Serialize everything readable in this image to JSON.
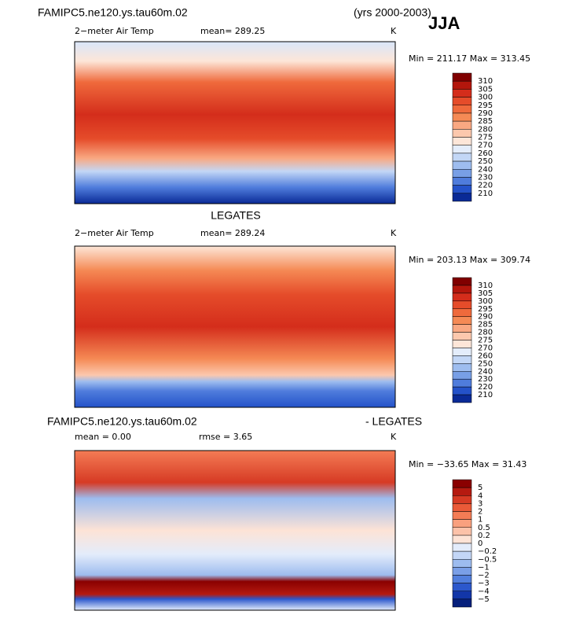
{
  "header": {
    "case": "FAMIPC5.ne120.ys.tau60m.02",
    "years": "(yrs 2000-2003)",
    "season": "JJA"
  },
  "panels": [
    {
      "field": "2−meter Air Temp",
      "mean": "mean= 289.25",
      "units": "K",
      "minmax": "Min = 211.17 Max = 313.45",
      "colorbar": {
        "labels": [
          "310",
          "305",
          "300",
          "295",
          "290",
          "285",
          "280",
          "275",
          "270",
          "260",
          "250",
          "240",
          "230",
          "220",
          "210"
        ],
        "colors": [
          "#800000",
          "#b3160c",
          "#d42d1b",
          "#e54c2a",
          "#ef6a3c",
          "#f58a55",
          "#f9a882",
          "#fcc8ad",
          "#fde6d8",
          "#e4edfb",
          "#c3d7f6",
          "#9ebdef",
          "#789fe6",
          "#4f7cdc",
          "#2452c9",
          "#0a2a96"
        ]
      }
    },
    {
      "title": "LEGATES",
      "field": "2−meter Air Temp",
      "mean": "mean= 289.24",
      "units": "K",
      "minmax": "Min = 203.13 Max = 309.74",
      "colorbar": {
        "labels": [
          "310",
          "305",
          "300",
          "295",
          "290",
          "285",
          "280",
          "275",
          "270",
          "260",
          "250",
          "240",
          "230",
          "220",
          "210"
        ],
        "colors": [
          "#800000",
          "#b3160c",
          "#d42d1b",
          "#e54c2a",
          "#ef6a3c",
          "#f58a55",
          "#f9a882",
          "#fcc8ad",
          "#fde6d8",
          "#e4edfb",
          "#c3d7f6",
          "#9ebdef",
          "#789fe6",
          "#4f7cdc",
          "#2452c9",
          "#0a2a96"
        ]
      }
    },
    {
      "title": "FAMIPC5.ne120.ys.tau60m.02",
      "title_right": "- LEGATES",
      "mean": "mean =   0.00",
      "rmse": "rmse =   3.65",
      "units": "K",
      "minmax": "Min = −33.65 Max =  31.43",
      "colorbar": {
        "labels": [
          "5",
          "4",
          "3",
          "2",
          "1",
          "0.5",
          "0.2",
          "0",
          "−0.2",
          "−0.5",
          "−1",
          "−2",
          "−3",
          "−4",
          "−5"
        ],
        "colors": [
          "#8a0000",
          "#b51a10",
          "#d63a24",
          "#ea5a38",
          "#f47c55",
          "#f9a07e",
          "#fcc2a9",
          "#fde3d6",
          "#e3ecfb",
          "#c3d6f6",
          "#9dbcef",
          "#7a9fe7",
          "#527fdd",
          "#2c58cc",
          "#1236a8",
          "#06207c"
        ]
      }
    }
  ]
}
